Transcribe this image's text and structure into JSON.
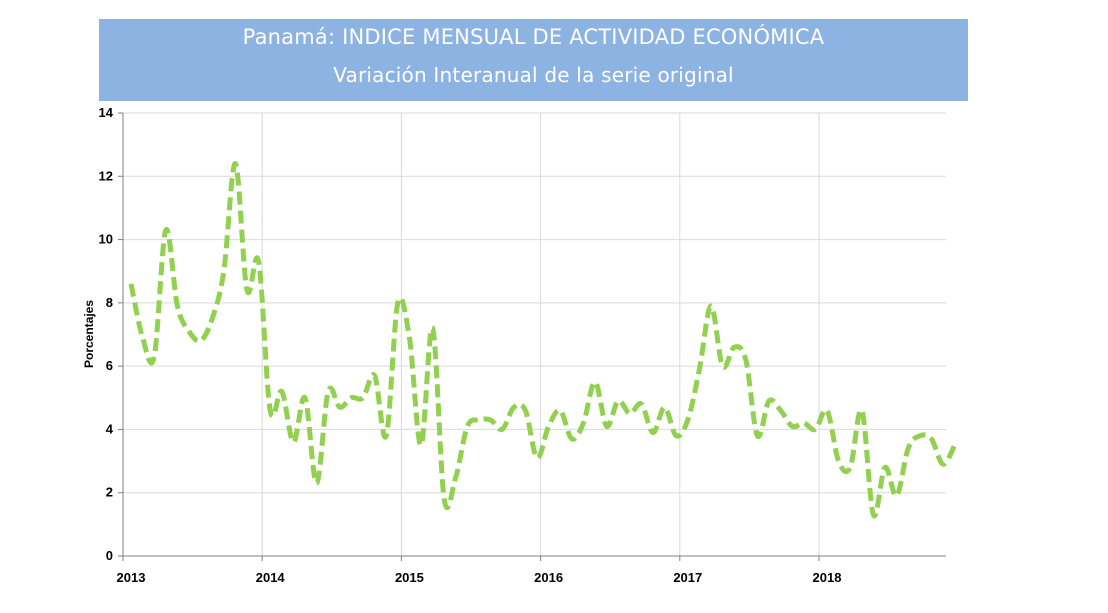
{
  "header": {
    "title": "Panamá: INDICE MENSUAL DE ACTIVIDAD ECONÓMICA",
    "subtitle": "Variación Interanual de la serie original",
    "background_color": "#8db3e2"
  },
  "chart_data": {
    "type": "line",
    "title": "Panamá: INDICE MENSUAL DE ACTIVIDAD ECONÓMICA",
    "subtitle": "Variación Interanual de la serie original",
    "xlabel": "",
    "ylabel": "Porcentajes",
    "ylim": [
      0,
      14
    ],
    "y_ticks": [
      0,
      2,
      4,
      6,
      8,
      10,
      12,
      14
    ],
    "x_ticks": [
      "2013",
      "2014",
      "2015",
      "2016",
      "2017",
      "2018"
    ],
    "grid": true,
    "line_color": "#92d050",
    "line_style": "dashed",
    "x": [
      "2013-01",
      "2013-02",
      "2013-03",
      "2013-04",
      "2013-05",
      "2013-06",
      "2013-07",
      "2013-08",
      "2013-09",
      "2013-10",
      "2013-11",
      "2013-12",
      "2014-01",
      "2014-02",
      "2014-03",
      "2014-04",
      "2014-05",
      "2014-06",
      "2014-07",
      "2014-08",
      "2014-09",
      "2014-10",
      "2014-11",
      "2014-12",
      "2015-01",
      "2015-02",
      "2015-03",
      "2015-04",
      "2015-05",
      "2015-06",
      "2015-07",
      "2015-08",
      "2015-09",
      "2015-10",
      "2015-11",
      "2015-12",
      "2016-01",
      "2016-02",
      "2016-03",
      "2016-04",
      "2016-05",
      "2016-06",
      "2016-07",
      "2016-08",
      "2016-09",
      "2016-10",
      "2016-11",
      "2016-12",
      "2017-01",
      "2017-02",
      "2017-03",
      "2017-04",
      "2017-05",
      "2017-06",
      "2017-07",
      "2017-08",
      "2017-09",
      "2017-10",
      "2017-11",
      "2017-12",
      "2018-01",
      "2018-02",
      "2018-03",
      "2018-04",
      "2018-05",
      "2018-06",
      "2018-07",
      "2018-08",
      "2018-09",
      "2018-10",
      "2018-11",
      "2018-12"
    ],
    "series": [
      {
        "values": [
          8.6,
          6.9,
          6.3,
          10.3,
          7.9,
          7.1,
          6.8,
          7.5,
          9.0,
          12.4,
          8.4,
          9.3,
          4.6,
          5.2,
          3.6,
          5.0,
          2.3,
          5.2,
          4.7,
          5.0,
          5.0,
          5.7,
          3.8,
          8.0,
          6.9,
          3.5,
          7.2,
          1.8,
          2.5,
          4.1,
          4.3,
          4.3,
          4.0,
          4.7,
          4.6,
          3.1,
          4.1,
          4.6,
          3.7,
          4.2,
          5.5,
          4.1,
          4.9,
          4.5,
          4.8,
          3.9,
          4.7,
          3.8,
          4.3,
          5.9,
          7.9,
          6.0,
          6.6,
          6.2,
          3.8,
          4.9,
          4.6,
          4.1,
          4.2,
          4.0,
          4.6,
          3.0,
          2.8,
          4.6,
          1.3,
          2.8,
          1.9,
          3.4,
          3.8,
          3.7,
          2.9,
          3.5
        ]
      }
    ]
  }
}
